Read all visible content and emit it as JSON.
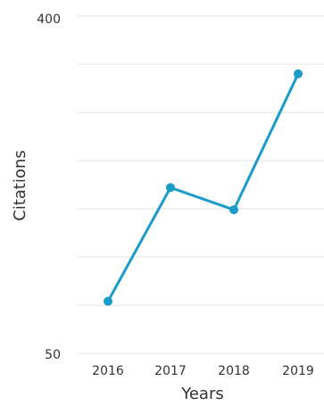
{
  "chart_data": {
    "type": "line",
    "x": [
      "2016",
      "2017",
      "2018",
      "2019"
    ],
    "series": [
      {
        "values": [
          104,
          222,
          199,
          340
        ]
      }
    ],
    "xlabel": "Years",
    "ylabel": "Citations",
    "ylim": [
      50,
      400
    ],
    "y_tick_labels": [
      "50",
      "400"
    ],
    "grid": true,
    "legend": "none",
    "colors": {
      "line": "#1a9bc8",
      "grid": "#e6e6e6",
      "text": "#333333"
    }
  }
}
